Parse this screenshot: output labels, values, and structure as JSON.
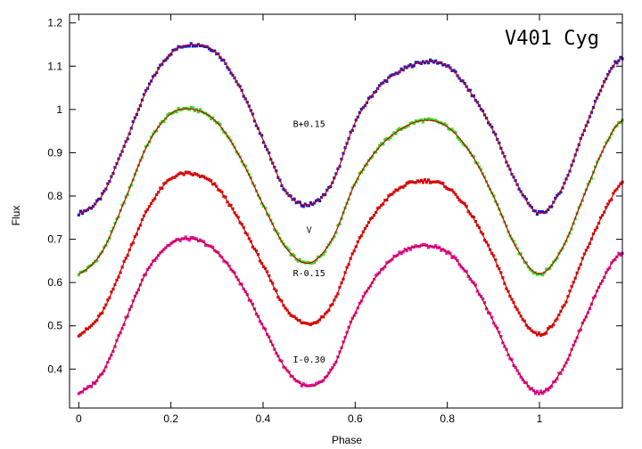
{
  "chart_data": {
    "type": "scatter",
    "title": "V401 Cyg",
    "xlabel": "Phase",
    "ylabel": "Flux",
    "xlim": [
      -0.02,
      1.18
    ],
    "ylim": [
      0.31,
      1.22
    ],
    "x_ticks": [
      "0",
      "0.2",
      "0.4",
      "0.6",
      "0.8",
      "1"
    ],
    "x_tick_values": [
      0,
      0.2,
      0.4,
      0.6,
      0.8,
      1.0
    ],
    "y_ticks": [
      "0.4",
      "0.5",
      "0.6",
      "0.7",
      "0.8",
      "0.9",
      "1",
      "1.1",
      "1.2"
    ],
    "y_tick_values": [
      0.4,
      0.5,
      0.6,
      0.7,
      0.8,
      0.9,
      1.0,
      1.1,
      1.2
    ],
    "grid": false,
    "fit_color": "#cc0000",
    "series": [
      {
        "name": "B+0.15",
        "color": "#1a1acc",
        "x": [
          0.0,
          0.05,
          0.1,
          0.15,
          0.2,
          0.25,
          0.3,
          0.35,
          0.4,
          0.45,
          0.5,
          0.55,
          0.6,
          0.65,
          0.7,
          0.75,
          0.8,
          0.85,
          0.9,
          0.95,
          1.0,
          1.05,
          1.1,
          1.15,
          1.18
        ],
        "y": [
          0.76,
          0.8,
          0.92,
          1.05,
          1.13,
          1.15,
          1.13,
          1.05,
          0.93,
          0.81,
          0.78,
          0.83,
          0.97,
          1.05,
          1.09,
          1.11,
          1.1,
          1.04,
          0.95,
          0.83,
          0.76,
          0.82,
          0.96,
          1.08,
          1.12
        ]
      },
      {
        "name": "V",
        "color": "#33dd22",
        "x": [
          0.0,
          0.05,
          0.1,
          0.15,
          0.2,
          0.25,
          0.3,
          0.35,
          0.4,
          0.45,
          0.5,
          0.55,
          0.6,
          0.65,
          0.7,
          0.75,
          0.8,
          0.85,
          0.9,
          0.95,
          1.0,
          1.05,
          1.1,
          1.15,
          1.18
        ],
        "y": [
          0.62,
          0.67,
          0.79,
          0.92,
          0.99,
          1.0,
          0.97,
          0.89,
          0.78,
          0.68,
          0.645,
          0.7,
          0.83,
          0.91,
          0.955,
          0.975,
          0.96,
          0.9,
          0.8,
          0.68,
          0.62,
          0.68,
          0.81,
          0.93,
          0.975
        ]
      },
      {
        "name": "R-0.15",
        "color": "#dd1111",
        "x": [
          0.0,
          0.05,
          0.1,
          0.15,
          0.2,
          0.25,
          0.3,
          0.35,
          0.4,
          0.45,
          0.5,
          0.55,
          0.6,
          0.65,
          0.7,
          0.75,
          0.8,
          0.85,
          0.9,
          0.95,
          1.0,
          1.05,
          1.1,
          1.15,
          1.18
        ],
        "y": [
          0.48,
          0.53,
          0.65,
          0.77,
          0.84,
          0.85,
          0.82,
          0.74,
          0.64,
          0.54,
          0.505,
          0.55,
          0.68,
          0.77,
          0.82,
          0.835,
          0.82,
          0.76,
          0.66,
          0.54,
          0.48,
          0.54,
          0.67,
          0.78,
          0.83
        ]
      },
      {
        "name": "I-0.30",
        "color": "#e010c0",
        "x": [
          0.0,
          0.05,
          0.1,
          0.15,
          0.2,
          0.25,
          0.3,
          0.35,
          0.4,
          0.45,
          0.5,
          0.55,
          0.6,
          0.65,
          0.7,
          0.75,
          0.8,
          0.85,
          0.9,
          0.95,
          1.0,
          1.05,
          1.1,
          1.15,
          1.18
        ],
        "y": [
          0.345,
          0.39,
          0.51,
          0.63,
          0.69,
          0.7,
          0.67,
          0.6,
          0.5,
          0.4,
          0.36,
          0.4,
          0.53,
          0.62,
          0.67,
          0.685,
          0.67,
          0.61,
          0.51,
          0.4,
          0.345,
          0.4,
          0.52,
          0.63,
          0.67
        ]
      }
    ]
  }
}
